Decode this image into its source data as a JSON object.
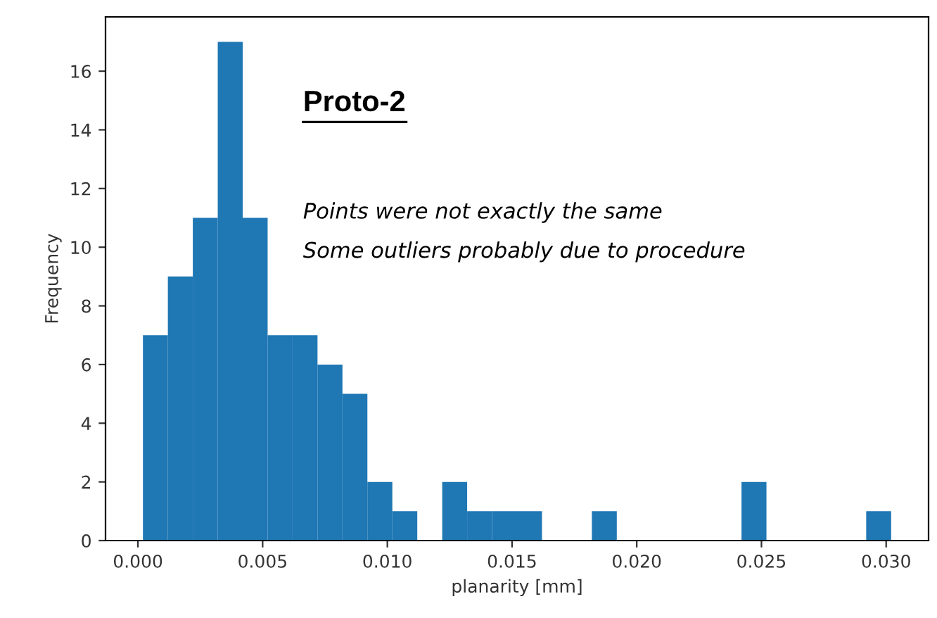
{
  "chart_data": {
    "type": "histogram",
    "xlabel": "planarity [mm]",
    "ylabel": "Frequency",
    "color": "#1f77b4",
    "bins": [
      0.0002,
      0.0012,
      0.0022,
      0.0032,
      0.0042,
      0.0052,
      0.0062,
      0.0072,
      0.0082,
      0.0092,
      0.0102,
      0.0112,
      0.0122,
      0.0132,
      0.0142,
      0.0152,
      0.0162,
      0.0172,
      0.0182,
      0.0192,
      0.0202,
      0.0212,
      0.0222,
      0.0232,
      0.0242,
      0.0252,
      0.0262,
      0.0272,
      0.0282,
      0.0292,
      0.0302
    ],
    "values": [
      7,
      9,
      11,
      17,
      11,
      7,
      7,
      6,
      5,
      2,
      1,
      0,
      2,
      1,
      1,
      1,
      0,
      0,
      1,
      0,
      0,
      0,
      0,
      0,
      2,
      0,
      0,
      0,
      0,
      1
    ],
    "xlim": [
      -0.0013,
      0.0317
    ],
    "ylim": [
      0,
      17.85
    ],
    "xticks": [
      {
        "value": 0.0,
        "label": "0.000"
      },
      {
        "value": 0.005,
        "label": "0.005"
      },
      {
        "value": 0.01,
        "label": "0.010"
      },
      {
        "value": 0.015,
        "label": "0.015"
      },
      {
        "value": 0.02,
        "label": "0.020"
      },
      {
        "value": 0.025,
        "label": "0.025"
      },
      {
        "value": 0.03,
        "label": "0.030"
      }
    ],
    "yticks": [
      0,
      2,
      4,
      6,
      8,
      10,
      12,
      14,
      16
    ],
    "grid": false,
    "annotations": [
      "Proto-2",
      "Points were not exactly the same",
      "Some outliers probably due to procedure"
    ]
  }
}
